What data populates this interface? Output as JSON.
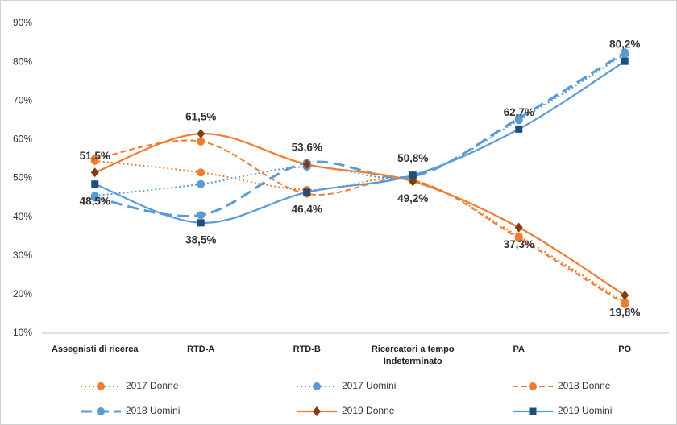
{
  "chart_data": {
    "type": "line",
    "categories": [
      "Assegnisti di ricerca",
      "RTD-A",
      "RTD-B",
      "Ricercatori a tempo Indeterminato",
      "PA",
      "PO"
    ],
    "ylim": [
      10,
      90
    ],
    "yticks": [
      {
        "value": 10,
        "label": "10%"
      },
      {
        "value": 20,
        "label": "20%"
      },
      {
        "value": 30,
        "label": "30%"
      },
      {
        "value": 40,
        "label": "40%"
      },
      {
        "value": 50,
        "label": "50%"
      },
      {
        "value": 60,
        "label": "60%"
      },
      {
        "value": 70,
        "label": "70%"
      },
      {
        "value": 80,
        "label": "80%"
      },
      {
        "value": 90,
        "label": "90%"
      }
    ],
    "grid": false,
    "series": [
      {
        "name": "2017 Donne",
        "color": "#ed7d31",
        "line_style": "dotted",
        "marker": "circle",
        "values": [
          54.5,
          51.5,
          47,
          49.5,
          35,
          18
        ]
      },
      {
        "name": "2017 Uomini",
        "color": "#5b9bd5",
        "line_style": "dotted",
        "marker": "circle",
        "values": [
          45.5,
          48.5,
          53,
          50.5,
          65,
          82
        ]
      },
      {
        "name": "2018 Donne",
        "color": "#ed7d31",
        "line_style": "dashed",
        "marker": "circle",
        "values": [
          55,
          59.5,
          46,
          49.5,
          34.5,
          17.5
        ]
      },
      {
        "name": "2018 Uomini",
        "color": "#5b9bd5",
        "line_style": "long-dashed",
        "marker": "circle",
        "values": [
          45,
          40.5,
          54,
          50.5,
          65.5,
          82.5
        ]
      },
      {
        "name": "2019 Donne",
        "color": "#ed7d31",
        "line_style": "solid",
        "marker": "diamond",
        "label_color": "#c55a11",
        "values": [
          51.5,
          61.5,
          53.6,
          49.2,
          37.3,
          19.8
        ],
        "value_labels": [
          "51,5%",
          "61,5%",
          "53,6%",
          "49,2%",
          "37,3%",
          "19,8%"
        ]
      },
      {
        "name": "2019 Uomini",
        "color": "#5b9bd5",
        "line_style": "solid",
        "marker": "square",
        "label_color": "#1f4e79",
        "values": [
          48.5,
          38.5,
          46.4,
          50.8,
          62.7,
          80.2
        ],
        "value_labels": [
          "48,5%",
          "38,5%",
          "46,4%",
          "50,8%",
          "62,7%",
          "80,2%"
        ]
      }
    ]
  }
}
